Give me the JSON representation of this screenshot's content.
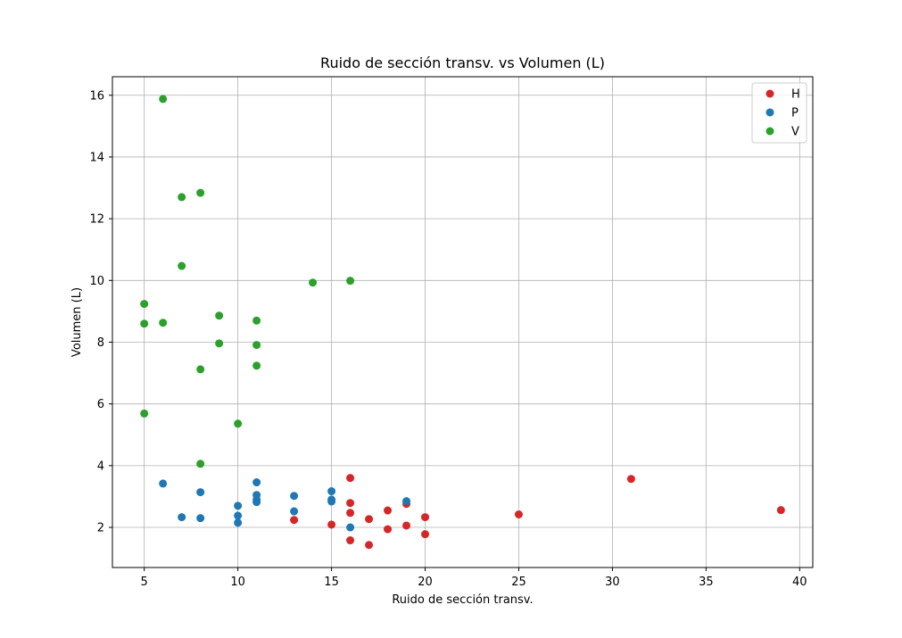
{
  "chart_data": {
    "type": "scatter",
    "title": "Ruido de sección transv. vs Volumen (L)",
    "xlabel": "Ruido de sección transv.",
    "ylabel": "Volumen (L)",
    "xlim": [
      3.3,
      40.7
    ],
    "ylim": [
      0.7,
      16.6
    ],
    "xticks": [
      5,
      10,
      15,
      20,
      25,
      30,
      35,
      40
    ],
    "yticks": [
      2,
      4,
      6,
      8,
      10,
      12,
      14,
      16
    ],
    "grid": true,
    "legend_position": "top-right",
    "series": [
      {
        "name": "H",
        "color": "#d62728",
        "points": [
          [
            13,
            2.24
          ],
          [
            15,
            2.09
          ],
          [
            16,
            3.6
          ],
          [
            16,
            2.79
          ],
          [
            16,
            2.47
          ],
          [
            16,
            1.58
          ],
          [
            17,
            2.27
          ],
          [
            17,
            1.43
          ],
          [
            18,
            2.55
          ],
          [
            18,
            1.94
          ],
          [
            19,
            2.76
          ],
          [
            19,
            2.06
          ],
          [
            20,
            2.33
          ],
          [
            20,
            1.78
          ],
          [
            25,
            2.42
          ],
          [
            31,
            3.57
          ],
          [
            39,
            2.56
          ]
        ]
      },
      {
        "name": "P",
        "color": "#1f77b4",
        "points": [
          [
            6,
            3.42
          ],
          [
            7,
            2.33
          ],
          [
            8,
            3.14
          ],
          [
            8,
            2.3
          ],
          [
            10,
            2.7
          ],
          [
            10,
            2.38
          ],
          [
            10,
            2.15
          ],
          [
            11,
            3.46
          ],
          [
            11,
            3.05
          ],
          [
            11,
            2.9
          ],
          [
            11,
            2.82
          ],
          [
            13,
            3.02
          ],
          [
            13,
            2.52
          ],
          [
            15,
            3.17
          ],
          [
            15,
            2.9
          ],
          [
            15,
            2.84
          ],
          [
            16,
            2.0
          ],
          [
            19,
            2.85
          ]
        ]
      },
      {
        "name": "V",
        "color": "#2ca02c",
        "points": [
          [
            5,
            9.24
          ],
          [
            5,
            8.6
          ],
          [
            5,
            5.69
          ],
          [
            6,
            15.88
          ],
          [
            6,
            8.63
          ],
          [
            7,
            12.7
          ],
          [
            7,
            10.47
          ],
          [
            8,
            12.84
          ],
          [
            8,
            7.12
          ],
          [
            8,
            4.06
          ],
          [
            9,
            8.86
          ],
          [
            9,
            7.96
          ],
          [
            10,
            5.36
          ],
          [
            11,
            8.7
          ],
          [
            11,
            7.91
          ],
          [
            11,
            7.24
          ],
          [
            14,
            9.93
          ],
          [
            16,
            9.99
          ]
        ]
      }
    ]
  }
}
